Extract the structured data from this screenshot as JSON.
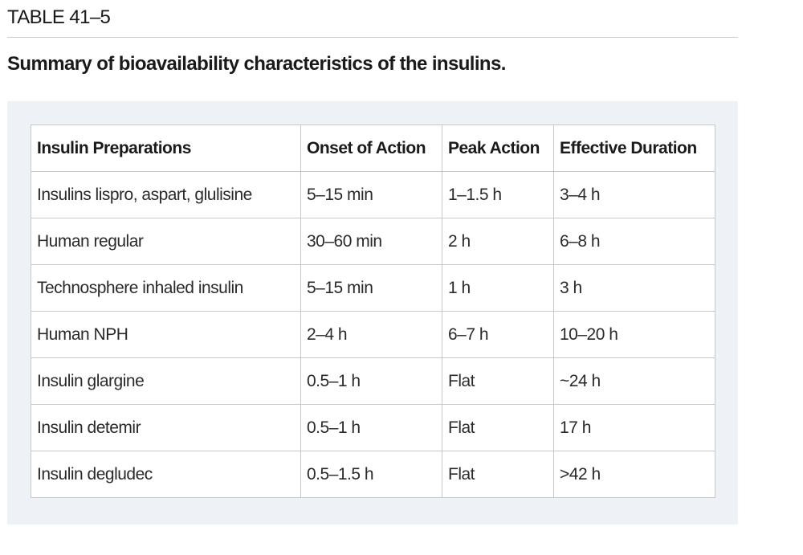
{
  "table_label": "TABLE 41–5",
  "caption": "Summary of bioavailability characteristics of the insulins.",
  "table": {
    "headers": [
      "Insulin Preparations",
      "Onset of Action",
      "Peak Action",
      "Effective Duration"
    ],
    "rows": [
      [
        "Insulins lispro, aspart, glulisine",
        "5–15 min",
        "1–1.5 h",
        "3–4 h"
      ],
      [
        "Human regular",
        "30–60 min",
        "2 h",
        "6–8 h"
      ],
      [
        "Technosphere inhaled insulin",
        "5–15 min",
        "1 h",
        "3 h"
      ],
      [
        "Human NPH",
        "2–4 h",
        "6–7 h",
        "10–20 h"
      ],
      [
        "Insulin glargine",
        "0.5–1 h",
        "Flat",
        "~24 h"
      ],
      [
        "Insulin detemir",
        "0.5–1 h",
        "Flat",
        "17 h"
      ],
      [
        "Insulin degludec",
        "0.5–1.5 h",
        "Flat",
        ">42 h"
      ]
    ]
  }
}
